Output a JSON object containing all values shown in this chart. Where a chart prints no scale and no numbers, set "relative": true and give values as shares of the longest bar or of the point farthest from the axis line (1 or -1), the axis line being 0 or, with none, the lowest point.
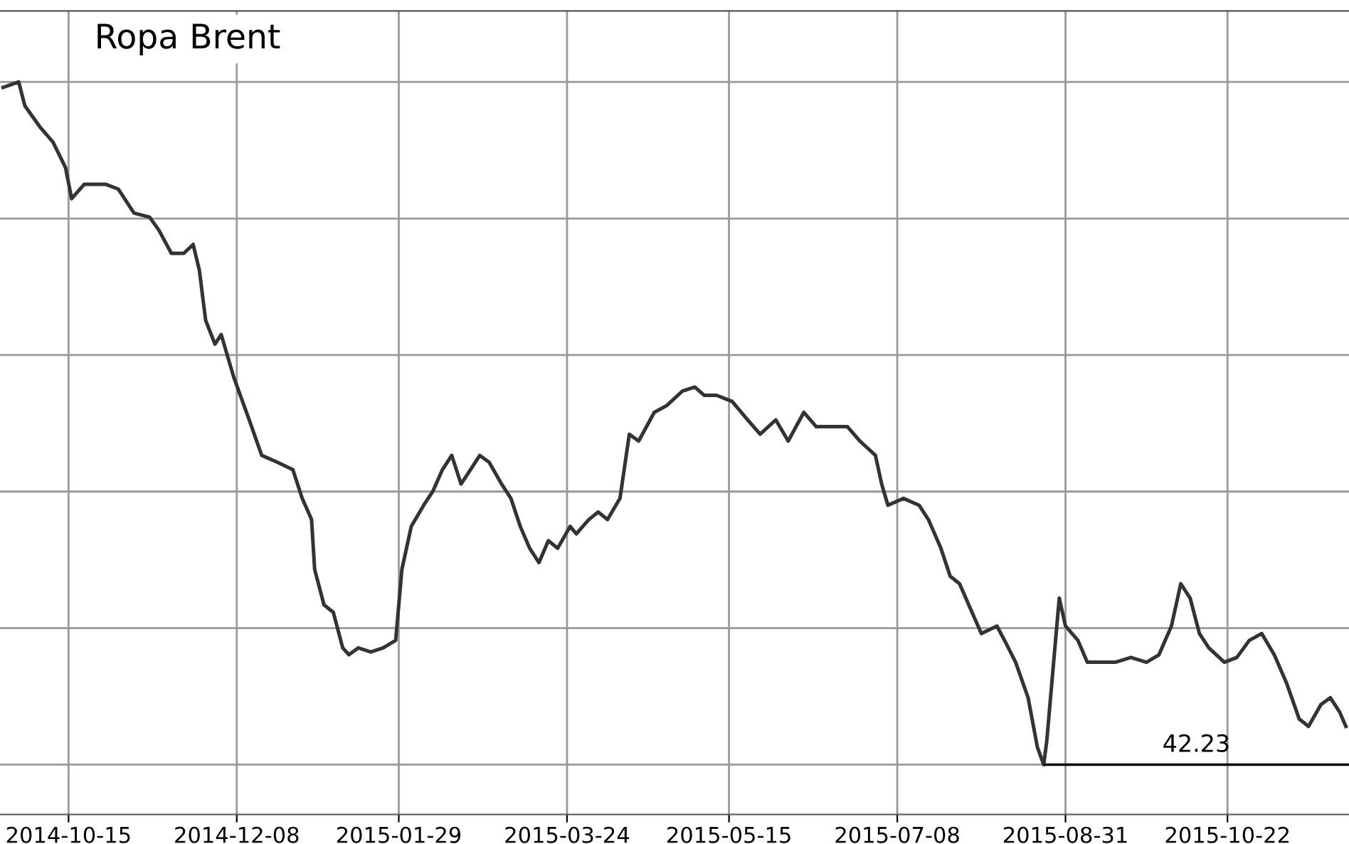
{
  "chart_data": {
    "type": "line",
    "title": "Ropa Brent",
    "relative": true,
    "x": [
      "2014-09-24",
      "2014-09-29",
      "2014-10-01",
      "2014-10-06",
      "2014-10-10",
      "2014-10-14",
      "2014-10-16",
      "2014-10-20",
      "2014-10-27",
      "2014-10-31",
      "2014-11-05",
      "2014-11-10",
      "2014-11-13",
      "2014-11-17",
      "2014-11-21",
      "2014-11-24",
      "2014-11-26",
      "2014-11-28",
      "2014-12-01",
      "2014-12-03",
      "2014-12-07",
      "2014-12-12",
      "2014-12-16",
      "2014-12-21",
      "2014-12-26",
      "2014-12-29",
      "2015-01-01",
      "2015-01-02",
      "2015-01-05",
      "2015-01-08",
      "2015-01-11",
      "2015-01-13",
      "2015-01-16",
      "2015-01-20",
      "2015-01-24",
      "2015-01-28",
      "2015-01-30",
      "2015-02-02",
      "2015-02-06",
      "2015-02-09",
      "2015-02-12",
      "2015-02-15",
      "2015-02-18",
      "2015-02-21",
      "2015-02-24",
      "2015-02-27",
      "2015-03-03",
      "2015-03-06",
      "2015-03-09",
      "2015-03-12",
      "2015-03-15",
      "2015-03-18",
      "2015-03-21",
      "2015-03-25",
      "2015-03-27",
      "2015-03-31",
      "2015-04-03",
      "2015-04-06",
      "2015-04-10",
      "2015-04-13",
      "2015-04-16",
      "2015-04-21",
      "2015-04-25",
      "2015-04-30",
      "2015-05-04",
      "2015-05-07",
      "2015-05-11",
      "2015-05-16",
      "2015-05-21",
      "2015-05-25",
      "2015-05-30",
      "2015-06-03",
      "2015-06-08",
      "2015-06-12",
      "2015-06-17",
      "2015-06-22",
      "2015-06-26",
      "2015-07-01",
      "2015-07-03",
      "2015-07-05",
      "2015-07-10",
      "2015-07-15",
      "2015-07-18",
      "2015-07-22",
      "2015-07-25",
      "2015-07-28",
      "2015-08-01",
      "2015-08-04",
      "2015-08-09",
      "2015-08-12",
      "2015-08-15",
      "2015-08-19",
      "2015-08-22",
      "2015-08-24",
      "2015-08-25",
      "2015-08-27",
      "2015-08-29",
      "2015-08-31",
      "2015-09-04",
      "2015-09-07",
      "2015-09-12",
      "2015-09-16",
      "2015-09-21",
      "2015-09-26",
      "2015-09-30",
      "2015-10-04",
      "2015-10-07",
      "2015-10-10",
      "2015-10-13",
      "2015-10-16",
      "2015-10-21",
      "2015-10-25",
      "2015-10-29",
      "2015-11-02",
      "2015-11-06",
      "2015-11-10",
      "2015-11-14",
      "2015-11-17",
      "2015-11-21",
      "2015-11-24",
      "2015-11-27",
      "2015-11-29"
    ],
    "series": [
      {
        "color": "#333333",
        "values": [
          0.992,
          1.0,
          0.965,
          0.933,
          0.912,
          0.875,
          0.829,
          0.85,
          0.85,
          0.843,
          0.808,
          0.802,
          0.783,
          0.749,
          0.749,
          0.762,
          0.724,
          0.651,
          0.616,
          0.63,
          0.568,
          0.505,
          0.453,
          0.443,
          0.432,
          0.39,
          0.359,
          0.286,
          0.234,
          0.223,
          0.171,
          0.161,
          0.171,
          0.165,
          0.171,
          0.182,
          0.286,
          0.349,
          0.38,
          0.401,
          0.432,
          0.453,
          0.411,
          0.432,
          0.453,
          0.443,
          0.411,
          0.39,
          0.349,
          0.317,
          0.296,
          0.328,
          0.317,
          0.349,
          0.338,
          0.359,
          0.37,
          0.359,
          0.39,
          0.484,
          0.474,
          0.516,
          0.526,
          0.547,
          0.553,
          0.541,
          0.541,
          0.532,
          0.505,
          0.484,
          0.505,
          0.474,
          0.516,
          0.495,
          0.495,
          0.495,
          0.474,
          0.453,
          0.411,
          0.38,
          0.39,
          0.38,
          0.359,
          0.317,
          0.276,
          0.265,
          0.223,
          0.192,
          0.203,
          0.177,
          0.15,
          0.098,
          0.025,
          0.0,
          0.035,
          0.14,
          0.244,
          0.203,
          0.182,
          0.15,
          0.15,
          0.15,
          0.157,
          0.15,
          0.161,
          0.203,
          0.265,
          0.244,
          0.192,
          0.171,
          0.15,
          0.157,
          0.182,
          0.192,
          0.161,
          0.119,
          0.067,
          0.056,
          0.088,
          0.098,
          0.077,
          0.056
        ]
      }
    ],
    "xlim": [
      "2014-09-23",
      "2015-11-30"
    ],
    "xticks": [
      "2014-10-15",
      "2014-12-08",
      "2015-01-29",
      "2015-03-24",
      "2015-05-15",
      "2015-07-08",
      "2015-08-31",
      "2015-10-22"
    ],
    "ref_lines": [
      {
        "axis": "y",
        "value": 0.0,
        "color": "#000000"
      }
    ],
    "annotations": [
      "42.23"
    ],
    "grid": true,
    "tick_labels": "x",
    "legend": false,
    "line_style": "solid",
    "marker": "none"
  }
}
